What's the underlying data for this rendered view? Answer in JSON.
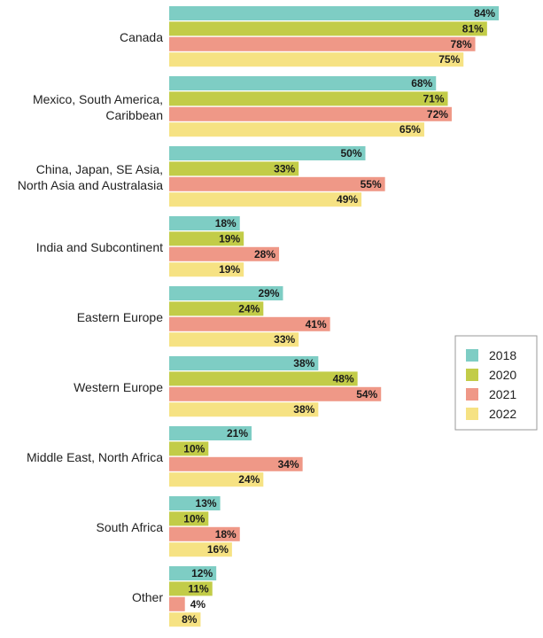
{
  "chart_data": {
    "type": "bar",
    "orientation": "horizontal",
    "categories": [
      "Canada",
      "Mexico, South America,\nCaribbean",
      "China, Japan, SE Asia,\nNorth Asia and Australasia",
      "India and Subcontinent",
      "Eastern Europe",
      "Western Europe",
      "Middle East, North Africa",
      "South Africa",
      "Other"
    ],
    "series": [
      {
        "name": "2018",
        "color": "#7ecdc4",
        "values": [
          84,
          68,
          50,
          18,
          29,
          38,
          21,
          13,
          12
        ]
      },
      {
        "name": "2020",
        "color": "#c2cc48",
        "values": [
          81,
          71,
          33,
          19,
          24,
          48,
          10,
          10,
          11
        ]
      },
      {
        "name": "2021",
        "color": "#ef9887",
        "values": [
          78,
          72,
          55,
          28,
          41,
          54,
          34,
          18,
          4
        ]
      },
      {
        "name": "2022",
        "color": "#f6e283",
        "values": [
          75,
          65,
          49,
          19,
          33,
          38,
          24,
          16,
          8
        ]
      }
    ],
    "value_suffix": "%",
    "xlim": [
      0,
      84
    ],
    "legend": "right",
    "grid": false
  }
}
